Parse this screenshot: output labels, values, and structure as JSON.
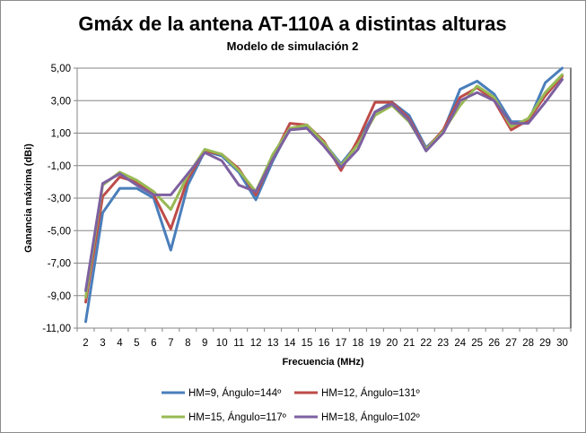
{
  "chart_data": {
    "type": "line",
    "title": "Gmáx de la antena AT-110A a distintas alturas",
    "subtitle": "Modelo de simulación 2",
    "xlabel": "Frecuencia (MHz)",
    "ylabel": "Ganancia máxima (dBi)",
    "ylim": [
      -11,
      5
    ],
    "yticks": [
      "5,00",
      "3,00",
      "1,00",
      "-1,00",
      "-3,00",
      "-5,00",
      "-7,00",
      "-9,00",
      "-11,00"
    ],
    "ytick_values": [
      5,
      3,
      1,
      -1,
      -3,
      -5,
      -7,
      -9,
      -11
    ],
    "x": [
      2,
      3,
      4,
      5,
      6,
      7,
      8,
      9,
      10,
      11,
      12,
      13,
      14,
      15,
      16,
      17,
      18,
      19,
      20,
      21,
      22,
      23,
      24,
      25,
      26,
      27,
      28,
      29,
      30
    ],
    "xticks": [
      "2",
      "3",
      "4",
      "5",
      "6",
      "7",
      "8",
      "9",
      "10",
      "11",
      "12",
      "13",
      "14",
      "15",
      "16",
      "17",
      "18",
      "19",
      "20",
      "21",
      "22",
      "23",
      "24",
      "25",
      "26",
      "27",
      "28",
      "29",
      "30"
    ],
    "grid": "horizontal",
    "legend_position": "bottom",
    "plot_background": "#ffffff",
    "series": [
      {
        "name": "HM=9, Ángulo=144º",
        "color": "#4a7ebb",
        "values": [
          -10.6,
          -3.9,
          -2.4,
          -2.4,
          -3.0,
          -6.2,
          -2.2,
          -0.1,
          -0.4,
          -1.4,
          -3.1,
          -0.7,
          1.3,
          1.4,
          0.4,
          -0.9,
          0.4,
          2.3,
          2.9,
          2.1,
          0.1,
          1.1,
          3.7,
          4.2,
          3.4,
          1.7,
          1.7,
          4.1,
          5.0
        ]
      },
      {
        "name": "HM=12, Ángulo=131º",
        "color": "#be4b48",
        "values": [
          -9.4,
          -2.9,
          -1.7,
          -2.0,
          -2.8,
          -4.9,
          -1.8,
          -0.1,
          -0.3,
          -1.2,
          -2.8,
          -0.5,
          1.6,
          1.5,
          0.5,
          -1.3,
          0.6,
          2.9,
          2.9,
          1.9,
          0.0,
          1.2,
          3.2,
          3.8,
          3.0,
          1.2,
          1.8,
          3.3,
          4.5
        ]
      },
      {
        "name": "HM=15, Ángulo=117º",
        "color": "#98b954",
        "values": [
          -9.1,
          -2.2,
          -1.4,
          -1.9,
          -2.6,
          -3.7,
          -1.6,
          0.0,
          -0.3,
          -1.3,
          -2.6,
          -0.3,
          1.3,
          1.5,
          0.4,
          -1.0,
          0.3,
          2.1,
          2.7,
          1.7,
          0.0,
          1.1,
          2.7,
          3.9,
          3.2,
          1.4,
          1.9,
          3.5,
          4.6
        ]
      },
      {
        "name": "HM=18, Ángulo=102º",
        "color": "#7d60a0",
        "values": [
          -8.7,
          -2.1,
          -1.5,
          -2.2,
          -2.8,
          -2.8,
          -1.5,
          -0.2,
          -0.7,
          -2.2,
          -2.6,
          -0.6,
          1.2,
          1.3,
          0.2,
          -1.1,
          0.0,
          2.3,
          2.8,
          1.8,
          -0.1,
          1.0,
          3.0,
          3.5,
          3.0,
          1.6,
          1.6,
          2.9,
          4.3
        ]
      }
    ]
  }
}
